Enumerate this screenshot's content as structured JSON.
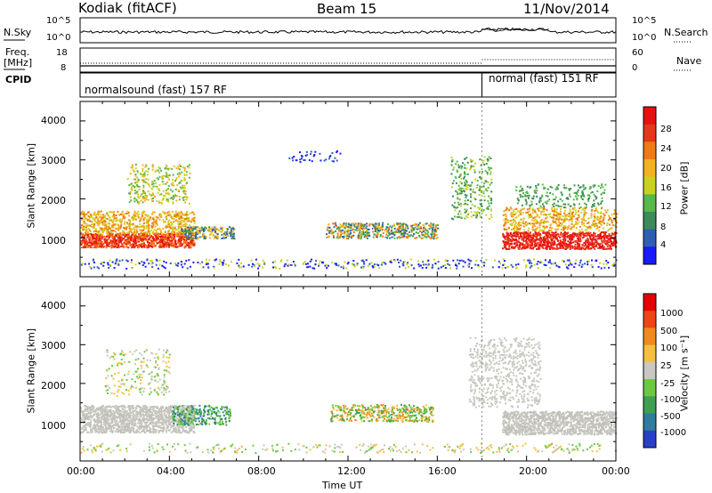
{
  "header": {
    "station": "Kodiak (fitACF)",
    "beam": "Beam 15",
    "date": "11/Nov/2014"
  },
  "panels": {
    "sky": {
      "left_label": "N.Sky",
      "right_label": "N.Search",
      "left_ticks": [
        "10^5",
        "10^0"
      ],
      "right_ticks": [
        "10^5",
        "10^0"
      ]
    },
    "freq": {
      "left_label_top": "Freq.",
      "left_label_bottom": "[MHz]",
      "right_label": "Nave",
      "left_ticks": [
        "18",
        "8"
      ],
      "right_ticks": [
        "60",
        "0"
      ]
    },
    "cpid": {
      "label": "CPID",
      "mode1": "normalsound (fast) 157 RF",
      "mode2": "normal (fast) 151 RF"
    }
  },
  "chart_data": [
    {
      "type": "heatmap",
      "ylabel": "Slant Range [km]",
      "xlabel": "Time UT",
      "y_ticks": [
        "1000",
        "2000",
        "3000",
        "4000"
      ],
      "x_ticks": [
        "00:00",
        "04:00",
        "08:00",
        "12:00",
        "16:00",
        "20:00",
        "00:00"
      ],
      "ylim": [
        0,
        4500
      ],
      "xlim_hours": [
        0,
        24
      ],
      "colorbar": {
        "label": "Power [dB]",
        "ticks": [
          "4",
          "8",
          "12",
          "16",
          "20",
          "24",
          "28"
        ],
        "colors": [
          "#1a1aff",
          "#2f5fb3",
          "#3d8a5a",
          "#58b84a",
          "#c8d21e",
          "#f4b21e",
          "#f07a14",
          "#e8361a",
          "#e81010"
        ]
      }
    },
    {
      "type": "heatmap",
      "ylabel": "Slant Range [km]",
      "xlabel": "Time UT",
      "y_ticks": [
        "1000",
        "2000",
        "3000",
        "4000"
      ],
      "x_ticks": [
        "00:00",
        "04:00",
        "08:00",
        "12:00",
        "16:00",
        "20:00",
        "00:00"
      ],
      "ylim": [
        0,
        4500
      ],
      "xlim_hours": [
        0,
        24
      ],
      "colorbar": {
        "label": "Velocity [m s⁻¹]",
        "ticks": [
          "1000",
          "500",
          "100",
          "25",
          "-25",
          "-100",
          "-500",
          "-1000"
        ],
        "colors": [
          "#2840c8",
          "#2e7c9e",
          "#3ea050",
          "#6cc840",
          "#c8c8c0",
          "#f4c040",
          "#f08a1a",
          "#f04418",
          "#e80000"
        ]
      }
    }
  ]
}
